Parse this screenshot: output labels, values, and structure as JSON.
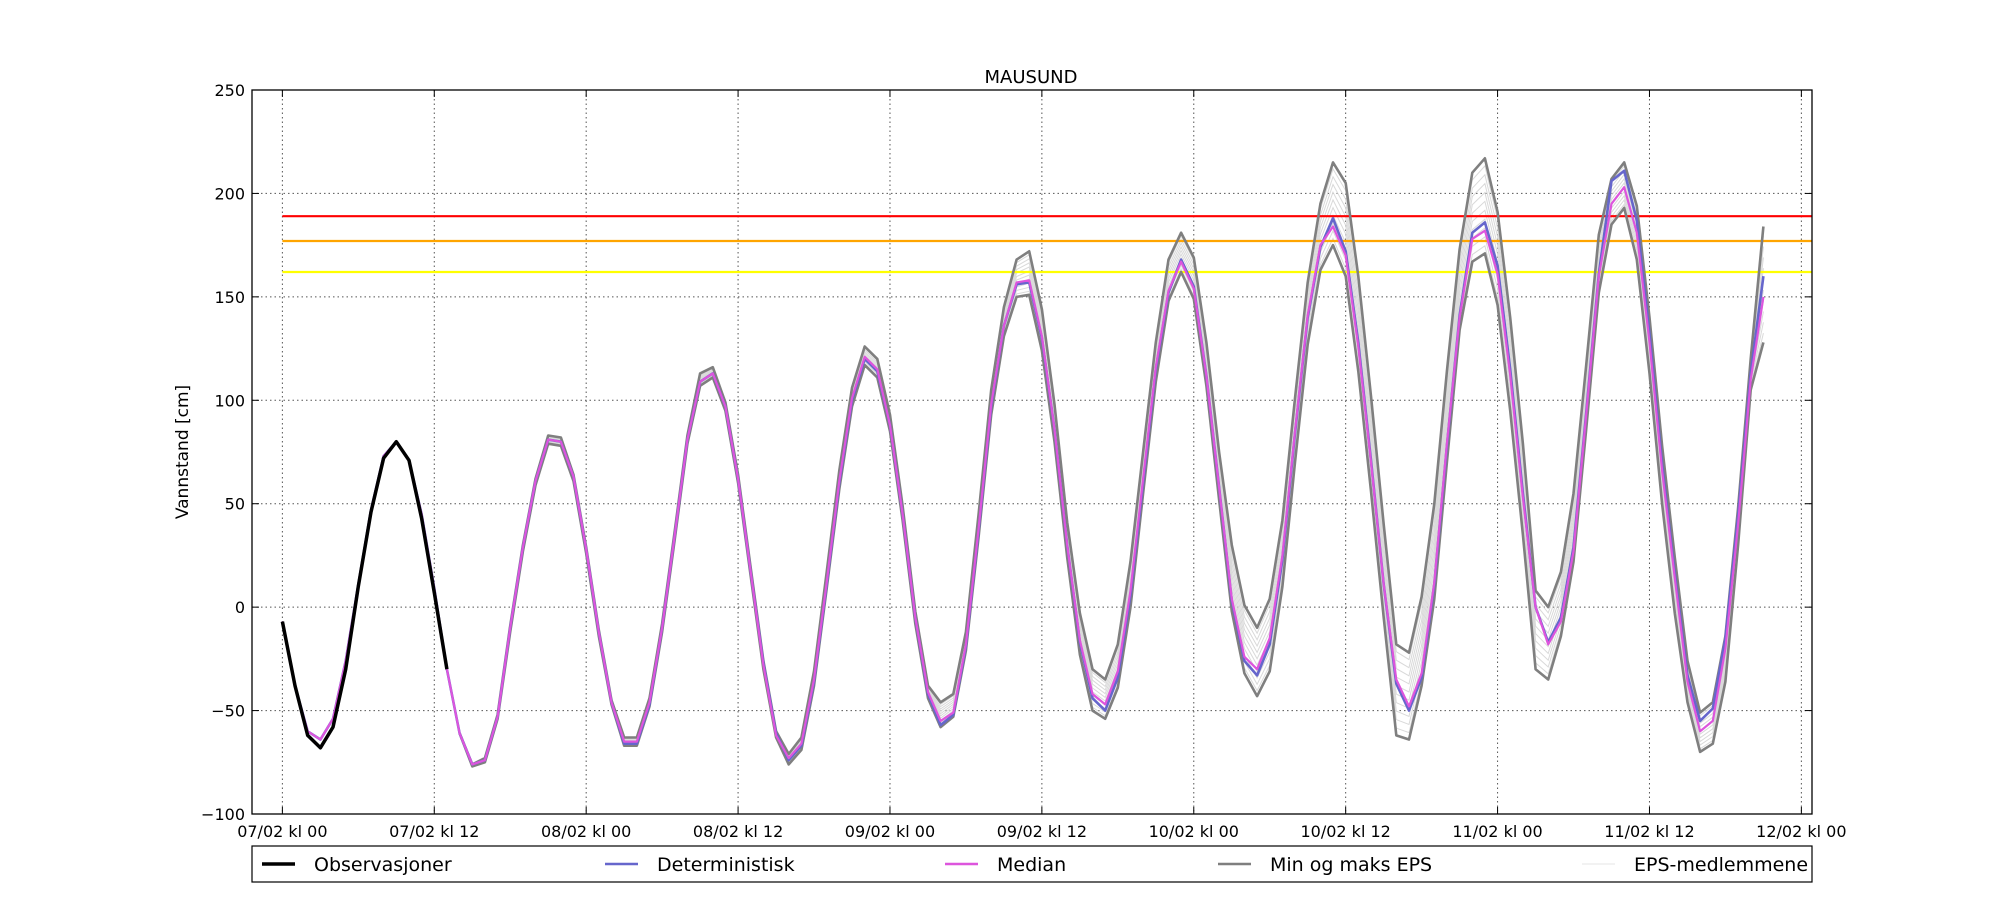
{
  "chart_data": {
    "type": "line",
    "title": "MAUSUND",
    "xlabel": "",
    "ylabel": "Vannstand [cm]",
    "xlim": [
      -0.1,
      5.035
    ],
    "ylim": [
      -100,
      250
    ],
    "grid": true,
    "legend_position": "bottom",
    "x_ticks": [
      0,
      0.5,
      1,
      1.5,
      2,
      2.5,
      3,
      3.5,
      4,
      4.5,
      5
    ],
    "x_tick_labels": [
      "07/02 kl 00",
      "07/02 kl 12",
      "08/02 kl 00",
      "08/02 kl 12",
      "09/02 kl 00",
      "09/02 kl 12",
      "10/02 kl 00",
      "10/02 kl 12",
      "11/02 kl 00",
      "11/02 kl 12",
      "12/02 kl 00"
    ],
    "y_ticks": [
      -100,
      -50,
      0,
      50,
      100,
      150,
      200,
      250
    ],
    "y_tick_labels": [
      "−100",
      "−50",
      "0",
      "50",
      "100",
      "150",
      "200",
      "250"
    ],
    "time_step_days": 0.041667,
    "thresholds": [
      {
        "value": 189,
        "color": "#ff0000"
      },
      {
        "value": 177,
        "color": "#ffa500"
      },
      {
        "value": 162,
        "color": "#ffff00"
      }
    ],
    "series": [
      {
        "name": "Observasjoner",
        "color": "#000000",
        "start_index": 0,
        "values": [
          -7,
          -38,
          -62,
          -68,
          -58,
          -30,
          10,
          46,
          72,
          80,
          71,
          43,
          7,
          -30
        ]
      },
      {
        "name": "Deterministisk",
        "color": "#6666cc",
        "start_index": 0,
        "values": [
          -7,
          -38,
          -60,
          -64,
          -54,
          -26,
          11,
          47,
          73,
          80,
          71,
          45,
          9,
          -30,
          -61,
          -76,
          -74,
          -53,
          -10,
          29,
          61,
          81,
          80,
          63,
          28,
          -12,
          -46,
          -66,
          -66,
          -47,
          -10,
          35,
          81,
          109,
          113,
          97,
          62,
          17,
          -27,
          -61,
          -74,
          -67,
          -36,
          11,
          60,
          100,
          120,
          114,
          88,
          45,
          -5,
          -42,
          -57,
          -52,
          -19,
          37,
          97,
          136,
          156,
          157,
          130,
          86,
          30,
          -17,
          -44,
          -50,
          -34,
          6,
          60,
          115,
          152,
          168,
          155,
          112,
          58,
          3,
          -26,
          -33,
          -18,
          23,
          84,
          140,
          174,
          188,
          172,
          128,
          71,
          11,
          -37,
          -50,
          -34,
          11,
          78,
          141,
          181,
          186,
          165,
          115,
          55,
          0,
          -17,
          -5,
          29,
          94,
          161,
          206,
          211,
          187,
          132,
          69,
          16,
          -33,
          -55,
          -49,
          -15,
          44,
          113,
          160
        ]
      },
      {
        "name": "Median",
        "color": "#dd55dd",
        "start_index": 0,
        "values": [
          -7,
          -38,
          -60,
          -64,
          -54,
          -26,
          11,
          47,
          73,
          80,
          71,
          45,
          9,
          -30,
          -61,
          -76,
          -74,
          -53,
          -10,
          29,
          61,
          81,
          80,
          63,
          28,
          -12,
          -46,
          -65,
          -65,
          -46,
          -10,
          35,
          81,
          109,
          113,
          97,
          62,
          17,
          -28,
          -62,
          -73,
          -66,
          -35,
          12,
          61,
          101,
          121,
          115,
          88,
          45,
          -5,
          -41,
          -55,
          -51,
          -18,
          38,
          98,
          136,
          157,
          158,
          131,
          86,
          30,
          -16,
          -42,
          -47,
          -31,
          8,
          62,
          116,
          153,
          167,
          154,
          112,
          58,
          4,
          -24,
          -30,
          -15,
          25,
          85,
          141,
          175,
          184,
          170,
          126,
          70,
          11,
          -35,
          -48,
          -32,
          12,
          79,
          140,
          178,
          182,
          161,
          112,
          53,
          0,
          -18,
          -7,
          27,
          93,
          160,
          195,
          203,
          181,
          128,
          66,
          14,
          -36,
          -60,
          -55,
          -20,
          40,
          110,
          150
        ]
      },
      {
        "name": "Min og maks EPS",
        "color": "#7f7f7f",
        "start_index": 0,
        "values": [
          null,
          null,
          null,
          null,
          null,
          null,
          null,
          null,
          null,
          null,
          null,
          null,
          null,
          null,
          -61,
          -77,
          -75,
          -54,
          -12,
          27,
          59,
          79,
          78,
          61,
          26,
          -14,
          -47,
          -67,
          -67,
          -48,
          -12,
          33,
          79,
          107,
          111,
          95,
          60,
          15,
          -30,
          -63,
          -76,
          -69,
          -38,
          9,
          57,
          97,
          117,
          111,
          85,
          42,
          -8,
          -44,
          -58,
          -53,
          -21,
          34,
          93,
          131,
          150,
          151,
          124,
          80,
          24,
          -23,
          -50,
          -54,
          -39,
          0,
          55,
          109,
          148,
          162,
          149,
          107,
          52,
          -2,
          -32,
          -43,
          -31,
          10,
          70,
          127,
          163,
          175,
          160,
          114,
          56,
          -5,
          -62,
          -64,
          -38,
          4,
          70,
          134,
          167,
          171,
          146,
          95,
          35,
          -30,
          -35,
          -14,
          22,
          86,
          152,
          185,
          193,
          168,
          113,
          50,
          -3,
          -46,
          -70,
          -66,
          -36,
          30,
          105,
          128
        ]
      },
      {
        "name": "",
        "color": "#7f7f7f",
        "start_index": 0,
        "values": [
          null,
          null,
          null,
          null,
          null,
          null,
          null,
          null,
          null,
          null,
          null,
          null,
          null,
          null,
          -61,
          -76,
          -73,
          -52,
          -9,
          30,
          62,
          83,
          82,
          64,
          29,
          -11,
          -45,
          -63,
          -63,
          -44,
          -8,
          37,
          83,
          113,
          116,
          99,
          64,
          19,
          -26,
          -60,
          -71,
          -63,
          -31,
          17,
          66,
          106,
          126,
          120,
          93,
          49,
          -2,
          -38,
          -46,
          -42,
          -12,
          45,
          105,
          145,
          168,
          172,
          144,
          98,
          41,
          -3,
          -30,
          -35,
          -18,
          22,
          75,
          128,
          168,
          181,
          169,
          128,
          75,
          30,
          1,
          -10,
          4,
          42,
          101,
          157,
          195,
          215,
          205,
          160,
          102,
          40,
          -18,
          -22,
          5,
          50,
          114,
          173,
          210,
          217,
          191,
          140,
          79,
          8,
          0,
          17,
          55,
          117,
          180,
          207,
          215,
          194,
          140,
          78,
          24,
          -26,
          -51,
          -46,
          -14,
          48,
          120,
          184
        ]
      }
    ],
    "ensemble_band": {
      "name": "EPS-medlemmene",
      "color": "#d9d9d9",
      "members": 10,
      "note_fraction_range": [
        0.08,
        0.92
      ]
    },
    "legend": [
      {
        "label": "Observasjoner",
        "color": "#000000"
      },
      {
        "label": "Deterministisk",
        "color": "#6666cc"
      },
      {
        "label": "Median",
        "color": "#dd55dd"
      },
      {
        "label": "Min og maks EPS",
        "color": "#7f7f7f"
      },
      {
        "label": "EPS-medlemmene",
        "color": "#e6e6e6"
      }
    ]
  }
}
